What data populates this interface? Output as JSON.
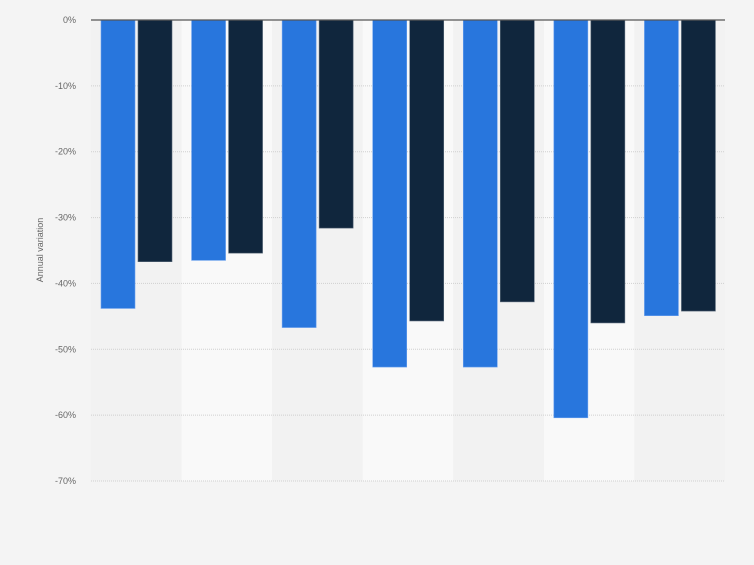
{
  "chart_data": {
    "type": "bar",
    "title": "",
    "xlabel": "",
    "ylabel": "Annual variation",
    "ylim": [
      -70,
      0
    ],
    "yticks": [
      "0%",
      "-10%",
      "-20%",
      "-30%",
      "-40%",
      "-50%",
      "-60%",
      "-70%"
    ],
    "ytick_values": [
      0,
      -10,
      -20,
      -30,
      -40,
      -50,
      -60,
      -70
    ],
    "grid": true,
    "categories": [
      "",
      "",
      "",
      "",
      "",
      "",
      ""
    ],
    "series": [
      {
        "color": "#2876dd",
        "values": [
          -43.8,
          -36.5,
          -46.7,
          -52.7,
          -52.7,
          -60.4,
          -44.9
        ]
      },
      {
        "color": "#10263d",
        "values": [
          -36.7,
          -35.4,
          -31.6,
          -45.7,
          -42.8,
          -46.0,
          -44.2
        ]
      }
    ]
  }
}
